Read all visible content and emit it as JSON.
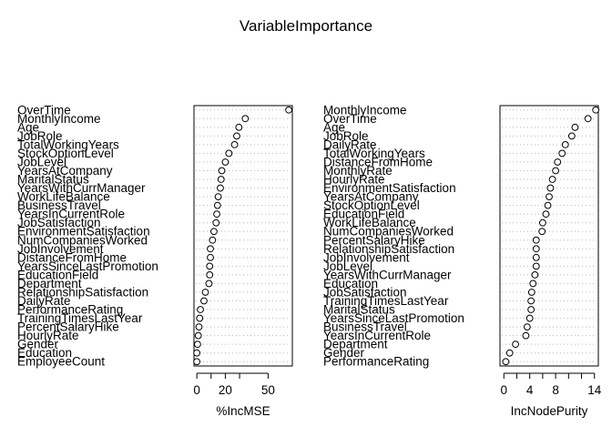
{
  "title": "VariableImportance",
  "chart_data": [
    {
      "type": "scatter",
      "xlabel": "%IncMSE",
      "xticks": [
        0,
        20,
        50
      ],
      "xticks_minor": [
        10,
        30
      ],
      "xlim": [
        -2,
        67
      ],
      "variables": [
        "OverTime",
        "MonthlyIncome",
        "Age",
        "JobRole",
        "TotalWorkingYears",
        "StockOptionLevel",
        "JobLevel",
        "YearsAtCompany",
        "MaritalStatus",
        "YearsWithCurrManager",
        "WorkLifeBalance",
        "BusinessTravel",
        "YearsInCurrentRole",
        "JobSatisfaction",
        "EnvironmentSatisfaction",
        "NumCompaniesWorked",
        "JobInvolvement",
        "DistanceFromHome",
        "YearsSinceLastPromotion",
        "EducationField",
        "Department",
        "RelationshipSatisfaction",
        "DailyRate",
        "PerformanceRating",
        "TrainingTimesLastYear",
        "PercentSalaryHike",
        "HourlyRate",
        "Gender",
        "Education",
        "EmployeeCount"
      ],
      "values": [
        64.5,
        34.0,
        29.5,
        28.0,
        26.5,
        22.5,
        20.0,
        17.5,
        17.0,
        16.5,
        15.0,
        14.5,
        14.0,
        13.5,
        12.0,
        11.0,
        9.5,
        9.5,
        9.0,
        9.0,
        8.5,
        6.0,
        5.0,
        2.5,
        2.0,
        1.5,
        1.0,
        0.5,
        0.0,
        0.0
      ]
    },
    {
      "type": "scatter",
      "xlabel": "IncNodePurity",
      "xticks": [
        0,
        4,
        8,
        14
      ],
      "xticks_minor": [
        2,
        6,
        10,
        12
      ],
      "xlim": [
        -0.6,
        14.6
      ],
      "variables": [
        "MonthlyIncome",
        "OverTime",
        "Age",
        "JobRole",
        "DailyRate",
        "TotalWorkingYears",
        "DistanceFromHome",
        "MonthlyRate",
        "HourlyRate",
        "EnvironmentSatisfaction",
        "YearsAtCompany",
        "StockOptionLevel",
        "EducationField",
        "WorkLifeBalance",
        "NumCompaniesWorked",
        "PercentSalaryHike",
        "RelationshipSatisfaction",
        "JobInvolvement",
        "JobLevel",
        "YearsWithCurrManager",
        "Education",
        "JobSatisfaction",
        "TrainingTimesLastYear",
        "MaritalStatus",
        "YearsSinceLastPromotion",
        "BusinessTravel",
        "YearsInCurrentRole",
        "Department",
        "Gender",
        "PerformanceRating"
      ],
      "values": [
        14.2,
        13.0,
        11.0,
        10.5,
        9.5,
        9.0,
        8.3,
        8.0,
        7.5,
        7.2,
        7.0,
        6.8,
        6.5,
        6.0,
        5.9,
        5.0,
        5.0,
        5.0,
        5.0,
        4.8,
        4.5,
        4.3,
        4.2,
        4.2,
        4.0,
        3.6,
        3.4,
        1.8,
        0.9,
        0.3
      ]
    }
  ]
}
